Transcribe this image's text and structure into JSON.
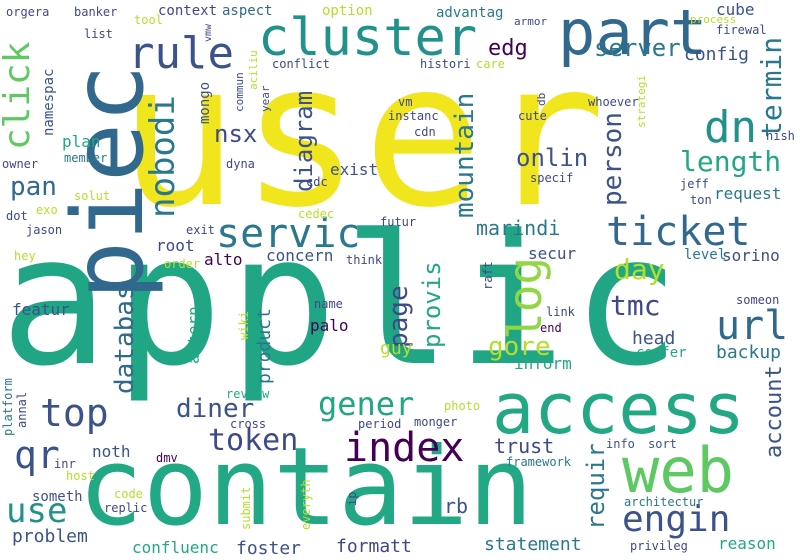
{
  "words": {
    "applic": "applic",
    "user": "user",
    "contain": "contain",
    "piec": "piec",
    "access": "access",
    "web": "web",
    "cluster": "cluster",
    "part": "part",
    "ticket": "ticket",
    "rule": "rule",
    "index": "index",
    "servic": "servic",
    "log": "log",
    "dn": "dn",
    "url": "url",
    "top": "top",
    "nobodi": "nobodi",
    "engin": "engin",
    "gener": "gener",
    "click": "click",
    "token": "token",
    "qr": "qr",
    "length": "length",
    "use": "use",
    "page": "page",
    "termin": "termin",
    "mountain": "mountain",
    "person": "person",
    "databas": "databas",
    "diagram": "diagram",
    "nsx": "nsx",
    "onlin": "onlin",
    "day": "day",
    "tmc": "tmc",
    "server": "server",
    "pan": "pan",
    "provis": "provis",
    "gore": "gore",
    "diner": "diner",
    "requir": "requir",
    "account": "account",
    "edg": "edg",
    "config": "config",
    "marindi": "marindi",
    "trust": "trust",
    "head": "head",
    "backup": "backup",
    "rb": "rb",
    "statement": "statement",
    "formatt": "formatt",
    "foster": "foster",
    "problem": "problem",
    "confluenc": "confluenc",
    "reason": "reason",
    "palo": "palo",
    "guy": "guy",
    "product": "product",
    "altern": "altern",
    "concern": "concern",
    "alto": "alto",
    "root": "root",
    "featur": "featur",
    "exist": "exist",
    "plan": "plan",
    "request": "request",
    "level": "level",
    "sorino": "sorino",
    "secur": "secur",
    "inform": "inform",
    "confer": "confer",
    "noth": "noth",
    "someth": "someth",
    "cube": "cube",
    "option": "option",
    "context": "context",
    "aspect": "aspect",
    "advantag": "advantag",
    "namespac": "namespac",
    "mongo": "mongo",
    "jeff": "jeff",
    "ton": "ton",
    "firewal": "firewal",
    "privileg": "privileg",
    "architectur": "architectur",
    "framework": "framework",
    "info": "info",
    "sort": "sort",
    "cross": "cross",
    "period": "period",
    "monger": "monger",
    "photo": "photo",
    "review": "review",
    "dmv": "dmv",
    "replic": "replic",
    "code": "code",
    "submit": "submit",
    "everyth": "everyth",
    "ip": "ip",
    "host": "host",
    "inr": "inr",
    "annal": "annal",
    "platform": "platform",
    "hey": "hey",
    "jason": "jason",
    "dot": "dot",
    "exo": "exo",
    "solut": "solut",
    "owner": "owner",
    "member": "member",
    "dyna": "dyna",
    "cdc": "cdc",
    "cedec": "cedec",
    "futur": "futur",
    "exit": "exit",
    "order": "order",
    "think": "think",
    "raft": "raft",
    "name": "name",
    "wiki": "wiki",
    "link": "link",
    "end": "end",
    "someon": "someon",
    "nish": "nish",
    "whoever": "whoever",
    "process": "process",
    "strategi": "strategi",
    "care": "care",
    "armor": "armor",
    "histori": "histori",
    "conflict": "conflict",
    "instanc": "instanc",
    "cute": "cute",
    "db": "db",
    "cdn": "cdn",
    "year": "year",
    "commun": "commun",
    "aciliu": "aciliu",
    "vm": "vm",
    "specif": "specif",
    "vmw": "vmw",
    "orgera": "orgera",
    "banker": "banker",
    "tool": "tool",
    "list": "list"
  }
}
